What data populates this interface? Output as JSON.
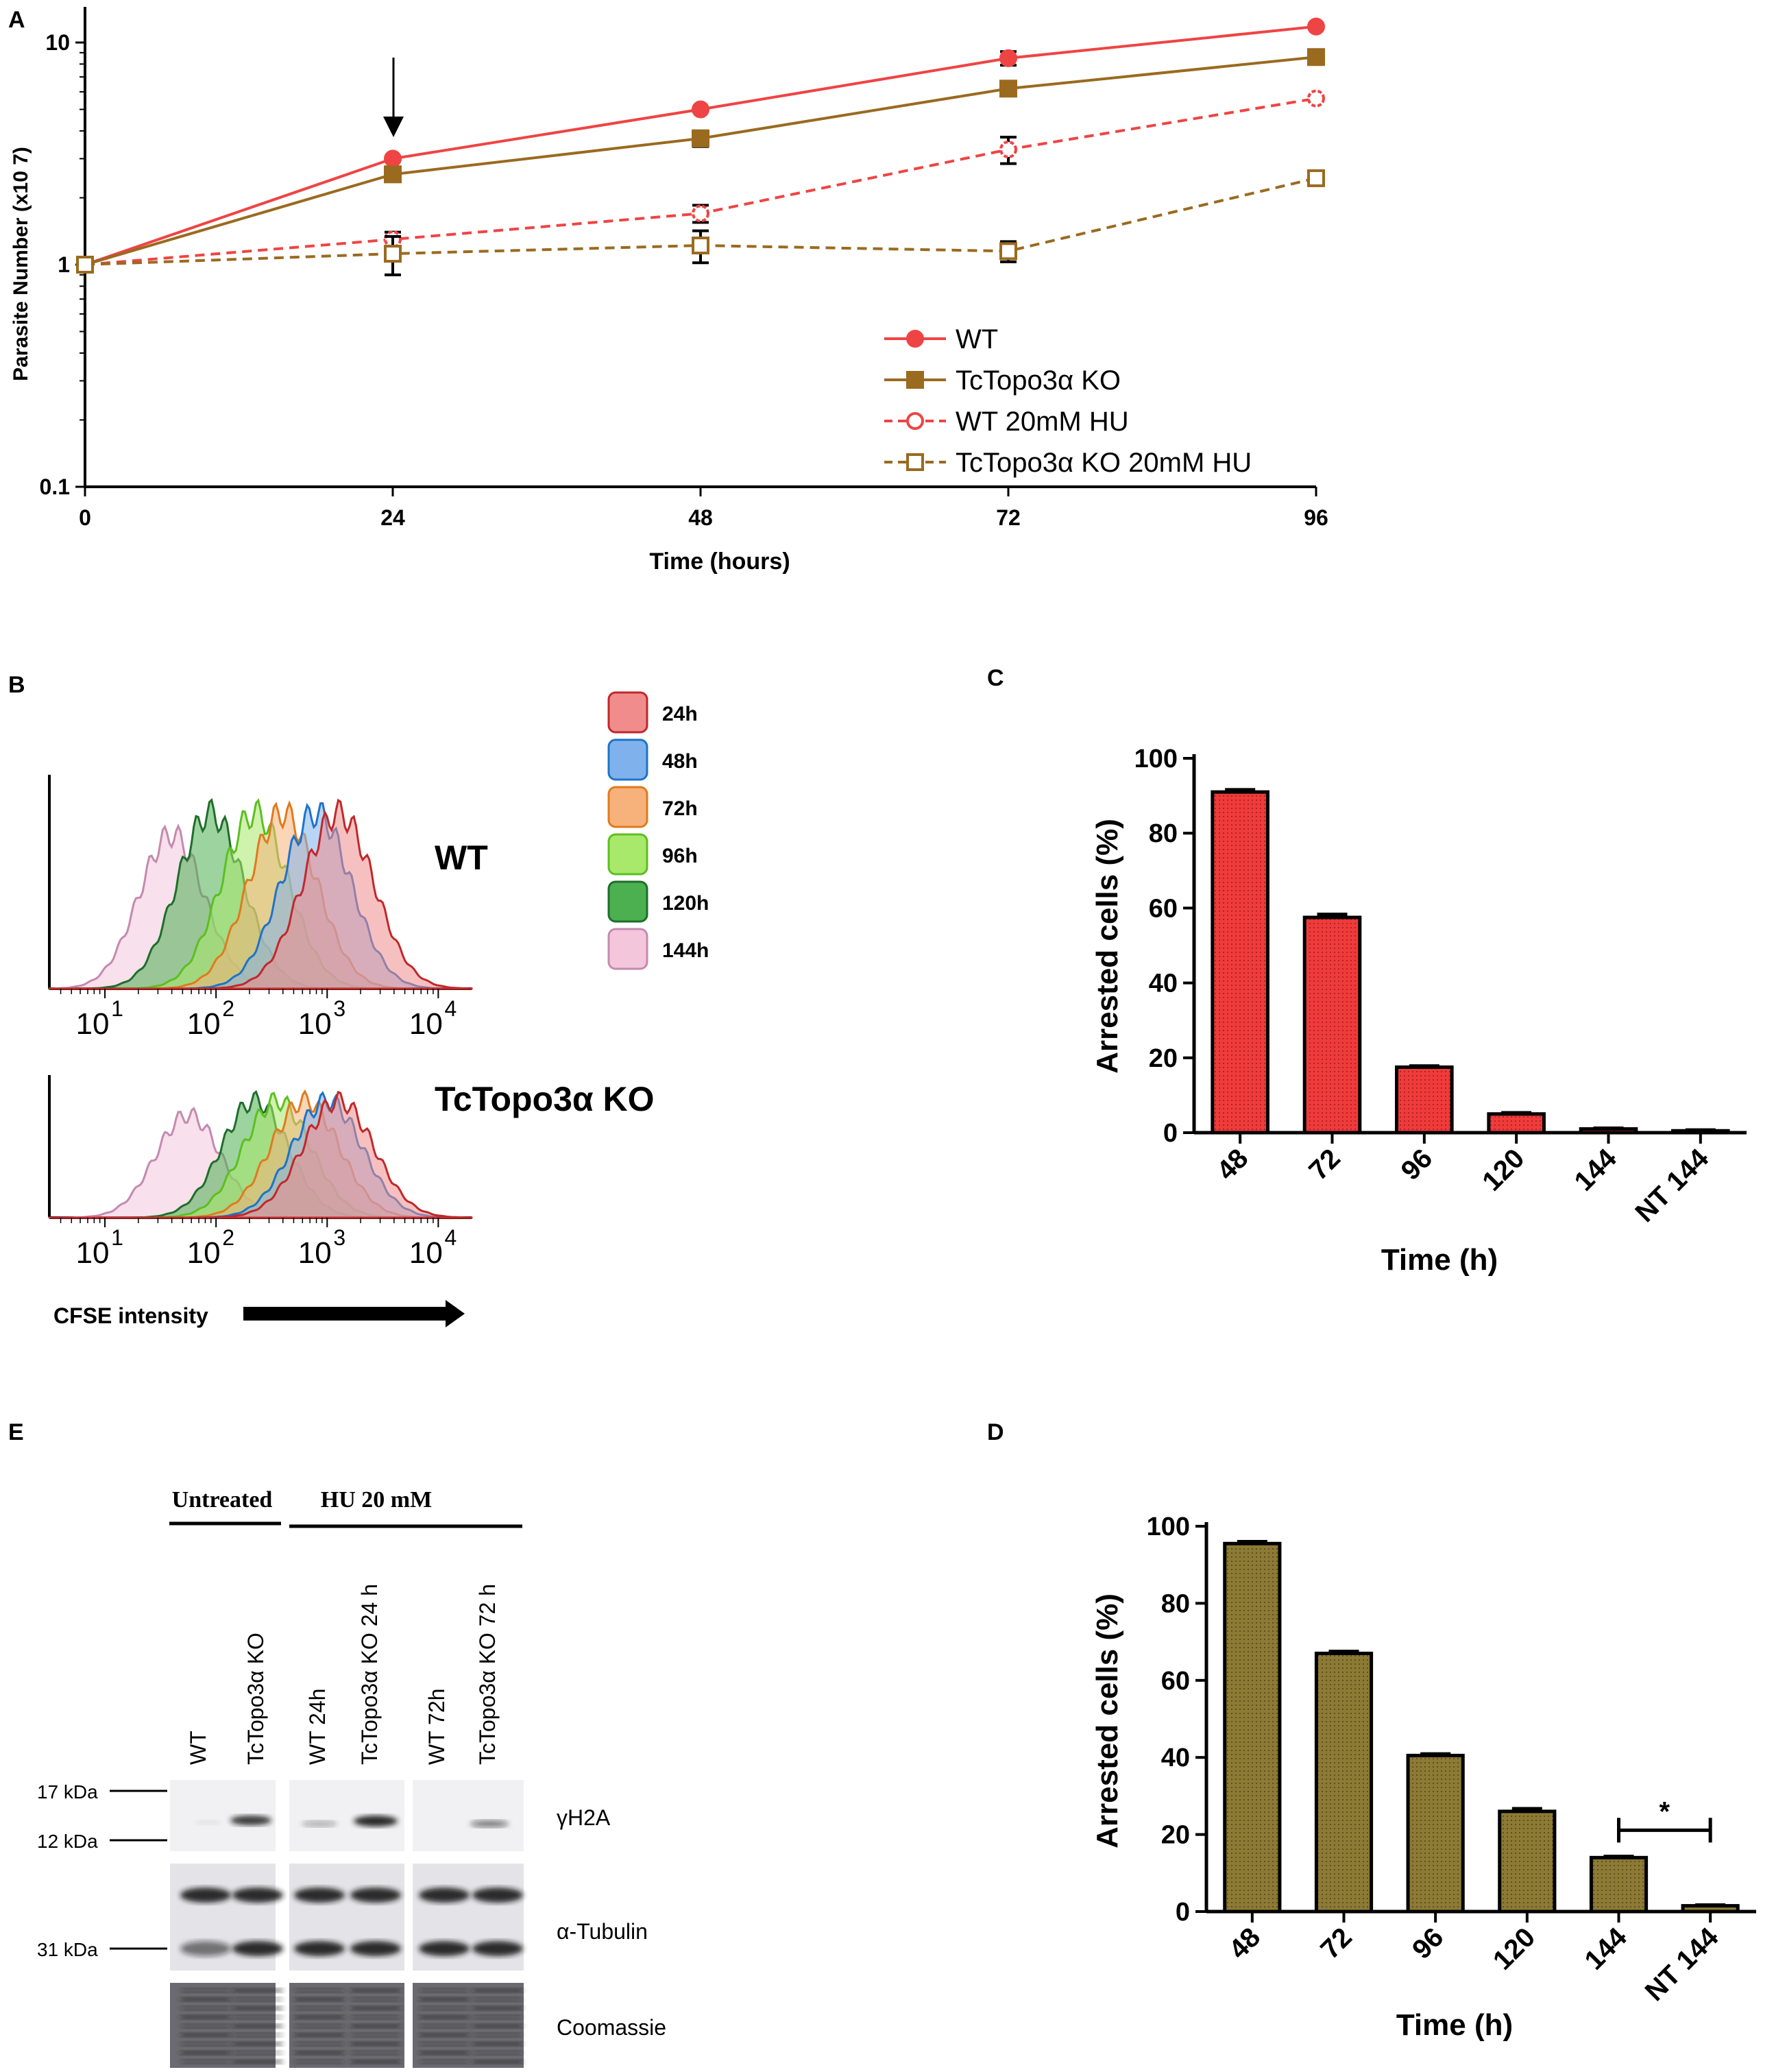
{
  "panel_letters": {
    "A": "A",
    "B": "B",
    "C": "C",
    "D": "D",
    "E": "E"
  },
  "colors": {
    "wt": "#ef4444",
    "ko": "#9a6a1f",
    "bar_c": "#ef3b3b",
    "bar_d": "#8c7a35"
  },
  "chart_data": [
    {
      "id": "A",
      "type": "line",
      "title": "",
      "xlabel": "Time (hours)",
      "ylabel": "Parasite Number (x10 7)",
      "yscale": "log",
      "xlim": [
        0,
        96
      ],
      "ylim": [
        0.1,
        12
      ],
      "x_ticks": [
        "0",
        "24",
        "48",
        "72",
        "96"
      ],
      "y_ticks": [
        "0.1",
        "1",
        "10"
      ],
      "x": [
        0,
        24,
        48,
        72,
        96
      ],
      "series": [
        {
          "name": "WT",
          "values": [
            1.0,
            3.0,
            5.0,
            8.5,
            11.8
          ],
          "errors": [
            0.02,
            0.05,
            0.1,
            0.6,
            0.2
          ],
          "color": "#ef4444",
          "dashed": false,
          "marker": "circle",
          "filled": true
        },
        {
          "name": "TcTopo3α KO",
          "values": [
            1.0,
            2.55,
            3.7,
            6.2,
            8.6
          ],
          "errors": [
            0.02,
            0.08,
            0.3,
            0.2,
            0.2
          ],
          "color": "#9a6a1f",
          "dashed": false,
          "marker": "square",
          "filled": true
        },
        {
          "name": "WT 20mM HU",
          "values": [
            1.0,
            1.3,
            1.7,
            3.3,
            5.6
          ],
          "errors": [
            0.02,
            0.1,
            0.15,
            0.45,
            0.15
          ],
          "color": "#ef4444",
          "dashed": true,
          "marker": "circle",
          "filled": false
        },
        {
          "name": "TcTopo3α KO 20mM HU",
          "values": [
            1.0,
            1.12,
            1.22,
            1.15,
            2.45
          ],
          "errors": [
            0.02,
            0.22,
            0.2,
            0.12,
            0.1
          ],
          "color": "#9a6a1f",
          "dashed": true,
          "marker": "square",
          "filled": false
        }
      ],
      "annotation": "arrow at 24 h"
    },
    {
      "id": "C",
      "type": "bar",
      "title": "",
      "xlabel": "Time (h)",
      "ylabel": "Arrested cells (%)",
      "ylim": [
        0,
        100
      ],
      "y_ticks": [
        "0",
        "20",
        "40",
        "60",
        "80",
        "100"
      ],
      "categories": [
        "48",
        "72",
        "96",
        "120",
        "144",
        "NT 144"
      ],
      "values": [
        91,
        57.5,
        17.5,
        5,
        1,
        0.5
      ],
      "errors": [
        0.6,
        0.8,
        0.3,
        0.3,
        0.2,
        0.2
      ],
      "color": "#ef3b3b"
    },
    {
      "id": "D",
      "type": "bar",
      "title": "",
      "xlabel": "Time (h)",
      "ylabel": "Arrested cells (%)",
      "ylim": [
        0,
        100
      ],
      "y_ticks": [
        "0",
        "20",
        "40",
        "60",
        "80",
        "100"
      ],
      "categories": [
        "48",
        "72",
        "96",
        "120",
        "144",
        "NT 144"
      ],
      "values": [
        95.5,
        67,
        40.5,
        26,
        14,
        1.5
      ],
      "errors": [
        0.5,
        0.5,
        0.4,
        0.7,
        0.3,
        0.2
      ],
      "color": "#8c7a35",
      "significance": "*"
    }
  ],
  "panel_b": {
    "legend": [
      {
        "label": "24h",
        "color": "#f08c8c",
        "edge": "#c0282a"
      },
      {
        "label": "48h",
        "color": "#7fb2ec",
        "edge": "#1e73c8"
      },
      {
        "label": "72h",
        "color": "#f6b27a",
        "edge": "#e07a1e"
      },
      {
        "label": "96h",
        "color": "#a8e86a",
        "edge": "#5cbf20"
      },
      {
        "label": "120h",
        "color": "#4caf50",
        "edge": "#1e6e2a"
      },
      {
        "label": "144h",
        "color": "#f3c6dc",
        "edge": "#c48ab0"
      }
    ],
    "histogram_peaks": {
      "wt": [
        3.1,
        2.9,
        2.6,
        2.35,
        1.95,
        1.6
      ],
      "ko": [
        3.1,
        3.0,
        2.8,
        2.55,
        2.35,
        1.75
      ]
    },
    "wt_label": "WT",
    "ko_label": "TcTopo3α KO",
    "tick_base": "10",
    "tick_exps": [
      "1",
      "2",
      "3",
      "4"
    ],
    "xlabel": "CFSE intensity"
  },
  "panel_e": {
    "group_untreated": "Untreated",
    "group_hu": "HU 20 mM",
    "lanes": [
      "WT",
      "TcTopo3α KO",
      "WT 24h",
      "TcTopo3α KO 24 h",
      "WT 72h",
      "TcTopo3α KO 72 h"
    ],
    "markers": [
      "17 kDa",
      "12 kDa",
      "31 kDa"
    ],
    "blot_labels": [
      "γH2A",
      "α-Tubulin",
      "Coomassie"
    ]
  }
}
